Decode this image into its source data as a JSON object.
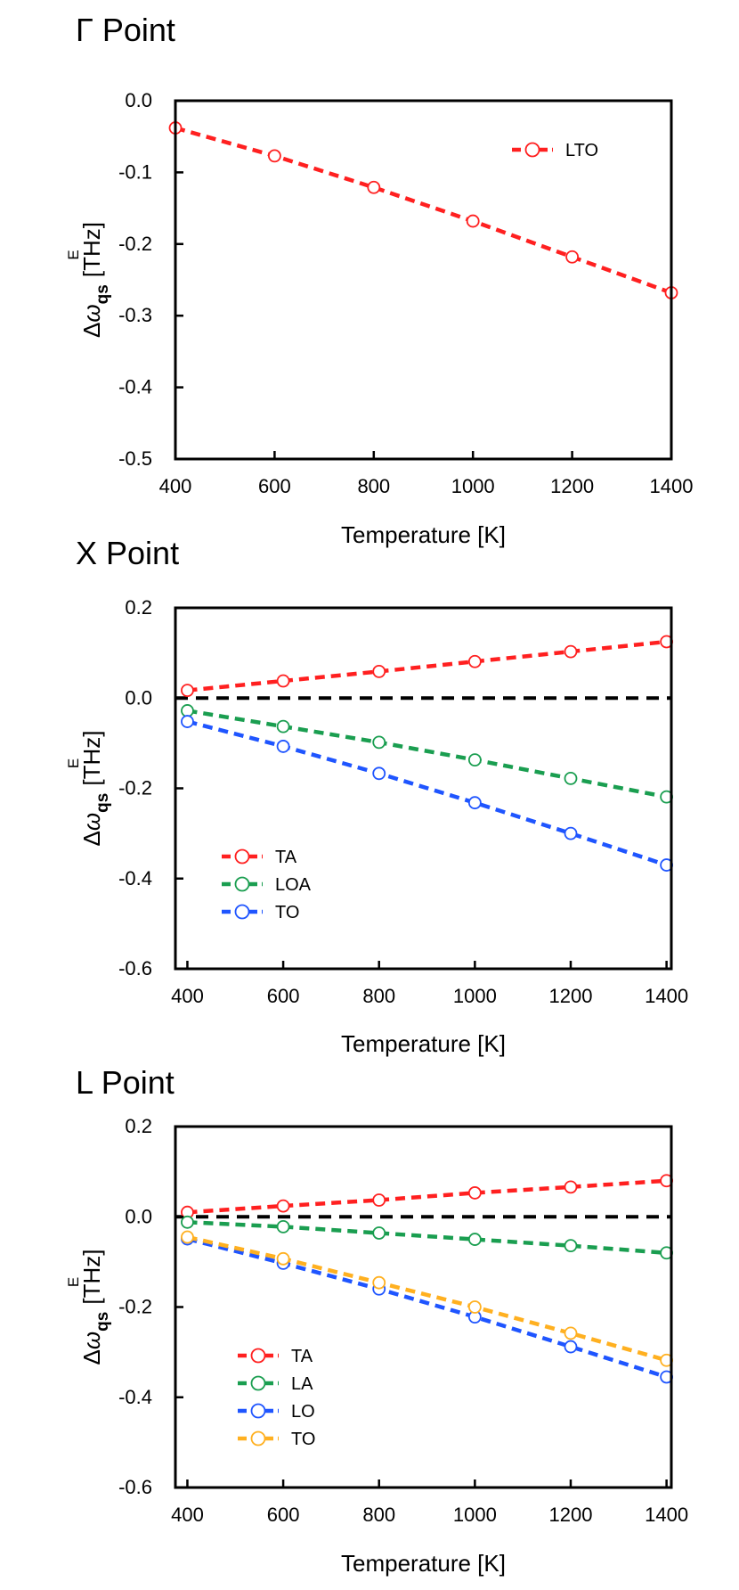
{
  "chart_data": [
    {
      "type": "line",
      "panel_title": "Γ Point",
      "xlabel": "Temperature [K]",
      "ylabel_parts": {
        "delta": "Δ",
        "omega": "ω",
        "subscript": "qs",
        "superscript": "E",
        "unit": "[THz]"
      },
      "xlim": [
        400,
        1400
      ],
      "ylim": [
        -0.5,
        0.0
      ],
      "xticks": [
        "400",
        "600",
        "800",
        "1000",
        "1200",
        "1400"
      ],
      "yticks": [
        "0.0",
        "-0.1",
        "-0.2",
        "-0.3",
        "-0.4",
        "-0.5"
      ],
      "legend_position": "top-right",
      "x": [
        400,
        600,
        800,
        1000,
        1200,
        1400
      ],
      "series": [
        {
          "name": "LTO",
          "color": "#ff2020",
          "values": [
            -0.038,
            -0.077,
            -0.121,
            -0.168,
            -0.218,
            -0.268
          ]
        }
      ],
      "reference_line": null
    },
    {
      "type": "line",
      "panel_title": "X Point",
      "xlabel": "Temperature [K]",
      "ylabel_parts": {
        "delta": "Δ",
        "omega": "ω",
        "subscript": "qs",
        "superscript": "E",
        "unit": "[THz]"
      },
      "xlim": [
        375,
        1410
      ],
      "ylim": [
        -0.6,
        0.2
      ],
      "xticks": [
        "400",
        "600",
        "800",
        "1000",
        "1200",
        "1400"
      ],
      "yticks": [
        "0.2",
        "0.0",
        "-0.2",
        "-0.4",
        "-0.6"
      ],
      "legend_position": "bottom-left",
      "x": [
        400,
        600,
        800,
        1000,
        1200,
        1400
      ],
      "series": [
        {
          "name": "TA",
          "color": "#ff2020",
          "values": [
            0.017,
            0.038,
            0.059,
            0.081,
            0.103,
            0.125
          ]
        },
        {
          "name": "LOA",
          "color": "#1a9e50",
          "values": [
            -0.028,
            -0.063,
            -0.098,
            -0.137,
            -0.178,
            -0.219
          ]
        },
        {
          "name": "TO",
          "color": "#1f55ff",
          "values": [
            -0.052,
            -0.107,
            -0.167,
            -0.232,
            -0.3,
            -0.37
          ]
        }
      ],
      "reference_line": {
        "value": 0.0,
        "color": "#000000"
      }
    },
    {
      "type": "line",
      "panel_title": "L Point",
      "xlabel": "Temperature [K]",
      "ylabel_parts": {
        "delta": "Δ",
        "omega": "ω",
        "subscript": "qs",
        "superscript": "E",
        "unit": "[THz]"
      },
      "xlim": [
        375,
        1410
      ],
      "ylim": [
        -0.6,
        0.2
      ],
      "xticks": [
        "400",
        "600",
        "800",
        "1000",
        "1200",
        "1400"
      ],
      "yticks": [
        "0.2",
        "0.0",
        "-0.2",
        "-0.4",
        "-0.6"
      ],
      "legend_position": "bottom-left",
      "x": [
        400,
        600,
        800,
        1000,
        1200,
        1400
      ],
      "series": [
        {
          "name": "TA",
          "color": "#ff2020",
          "values": [
            0.01,
            0.024,
            0.037,
            0.053,
            0.066,
            0.08
          ]
        },
        {
          "name": "LA",
          "color": "#1a9e50",
          "values": [
            -0.012,
            -0.022,
            -0.036,
            -0.05,
            -0.064,
            -0.08
          ]
        },
        {
          "name": "LO",
          "color": "#1f55ff",
          "values": [
            -0.049,
            -0.103,
            -0.16,
            -0.222,
            -0.288,
            -0.355
          ]
        },
        {
          "name": "TO",
          "color": "#ffb020",
          "values": [
            -0.045,
            -0.093,
            -0.146,
            -0.2,
            -0.258,
            -0.318
          ]
        }
      ],
      "reference_line": {
        "value": 0.0,
        "color": "#000000"
      }
    }
  ]
}
